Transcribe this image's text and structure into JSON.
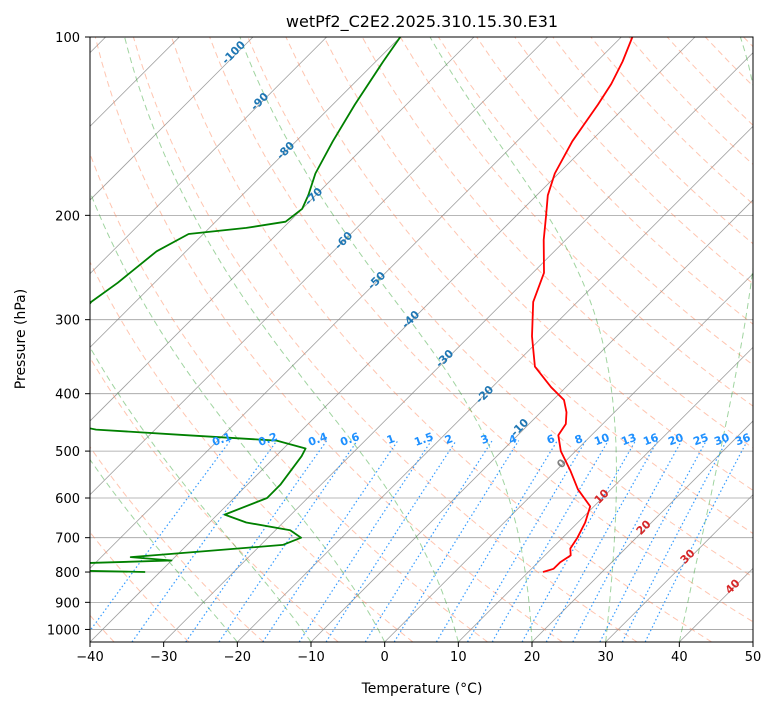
{
  "chart_data": {
    "type": "line",
    "title": "wetPf2_C2E2.2025.310.15.30.E31",
    "xlabel": "Temperature (°C)",
    "ylabel": "Pressure (hPa)",
    "xlim": [
      -40,
      50
    ],
    "ylim": [
      1050,
      100
    ],
    "y_scale": "log",
    "skew": "45°",
    "x_ticks": [
      -40,
      -30,
      -20,
      -10,
      0,
      10,
      20,
      30,
      40,
      50
    ],
    "y_ticks": [
      100,
      200,
      300,
      400,
      500,
      600,
      700,
      800,
      900,
      1000
    ],
    "grid": true,
    "series": [
      {
        "color": "#ff0000",
        "points": [
          [
            100,
            -48.5
          ],
          [
            110,
            -46.5
          ],
          [
            120,
            -45.0
          ],
          [
            130,
            -44.0
          ],
          [
            150,
            -42.5
          ],
          [
            170,
            -40.5
          ],
          [
            185,
            -38.5
          ],
          [
            200,
            -36.0
          ],
          [
            220,
            -33.0
          ],
          [
            250,
            -28.5
          ],
          [
            280,
            -26.0
          ],
          [
            320,
            -21.5
          ],
          [
            360,
            -17.0
          ],
          [
            390,
            -12.0
          ],
          [
            410,
            -8.5
          ],
          [
            430,
            -6.5
          ],
          [
            450,
            -5.0
          ],
          [
            470,
            -4.5
          ],
          [
            500,
            -2.0
          ],
          [
            540,
            2.0
          ],
          [
            580,
            5.5
          ],
          [
            620,
            9.5
          ],
          [
            660,
            11.0
          ],
          [
            700,
            12.0
          ],
          [
            730,
            12.5
          ],
          [
            750,
            13.5
          ],
          [
            770,
            13.0
          ],
          [
            790,
            13.0
          ],
          [
            800,
            12.0
          ]
        ]
      },
      {
        "color": "#008000",
        "points": [
          [
            100,
            -80.0
          ],
          [
            110,
            -79.0
          ],
          [
            130,
            -77.0
          ],
          [
            150,
            -75.0
          ],
          [
            170,
            -73.0
          ],
          [
            185,
            -71.0
          ],
          [
            195,
            -70.0
          ],
          [
            205,
            -70.5
          ],
          [
            210,
            -75.0
          ],
          [
            215,
            -82.0
          ],
          [
            230,
            -84.0
          ],
          [
            260,
            -85.0
          ],
          [
            280,
            -86.0
          ],
          [
            300,
            -85.5
          ],
          [
            330,
            -85.5
          ],
          [
            360,
            -86.0
          ],
          [
            400,
            -85.0
          ],
          [
            430,
            -82.0
          ],
          [
            460,
            -68.0
          ],
          [
            470,
            -55.0
          ],
          [
            480,
            -42.0
          ],
          [
            495,
            -37.0
          ],
          [
            510,
            -36.5
          ],
          [
            540,
            -36.0
          ],
          [
            570,
            -35.5
          ],
          [
            600,
            -35.5
          ],
          [
            640,
            -39.0
          ],
          [
            660,
            -35.0
          ],
          [
            680,
            -28.0
          ],
          [
            700,
            -25.5
          ],
          [
            720,
            -27.0
          ],
          [
            740,
            -38.0
          ],
          [
            755,
            -46.0
          ],
          [
            765,
            -40.0
          ],
          [
            775,
            -55.0
          ],
          [
            790,
            -65.0
          ],
          [
            800,
            -42.0
          ]
        ]
      }
    ],
    "dry_adiabat_labels": [
      "-100",
      "-90",
      "-80",
      "-70",
      "-60",
      "-50",
      "-40",
      "-30",
      "-20",
      "-10",
      "0",
      "10",
      "20",
      "30",
      "40"
    ],
    "mixing_ratio_labels": [
      "0.1",
      "0.2",
      "0.4",
      "0.6",
      "1",
      "1.5",
      "2",
      "3",
      "4",
      "6",
      "8",
      "10",
      "13",
      "16",
      "20",
      "25",
      "30",
      "36"
    ],
    "colors": {
      "temperature": "#ff0000",
      "dewpoint": "#008000",
      "dry_adiabat": "#ff7f50",
      "moist_adiabat": "#2ca02c",
      "mixing_ratio": "#1e90ff",
      "isotherm": "#808080",
      "adiabat_label_cold": "#1f77b4",
      "adiabat_label_warm": "#d62728"
    }
  }
}
